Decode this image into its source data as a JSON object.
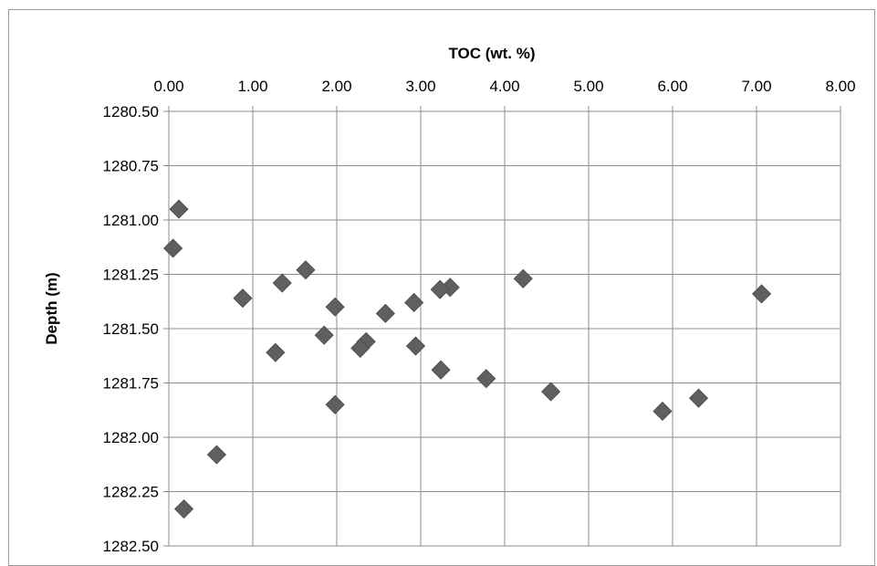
{
  "chart_data": {
    "type": "scatter",
    "title": "",
    "xlabel": "TOC (wt. %)",
    "ylabel": "Depth (m)",
    "xlim": [
      0,
      8
    ],
    "ylim": [
      1280.5,
      1282.5
    ],
    "y_inverted": true,
    "x_axis_position": "top",
    "grid": true,
    "legend": "none",
    "marker": "diamond",
    "marker_color": "#5f5f5f",
    "x_ticks": [
      "0.00",
      "1.00",
      "2.00",
      "3.00",
      "4.00",
      "5.00",
      "6.00",
      "7.00",
      "8.00"
    ],
    "y_ticks": [
      "1280.50",
      "1280.75",
      "1281.00",
      "1281.25",
      "1281.50",
      "1281.75",
      "1282.00",
      "1282.25",
      "1282.50"
    ],
    "points": [
      {
        "x": 0.12,
        "y": 1280.95
      },
      {
        "x": 0.05,
        "y": 1281.13
      },
      {
        "x": 1.63,
        "y": 1281.23
      },
      {
        "x": 4.22,
        "y": 1281.27
      },
      {
        "x": 1.35,
        "y": 1281.29
      },
      {
        "x": 3.35,
        "y": 1281.31
      },
      {
        "x": 3.23,
        "y": 1281.32
      },
      {
        "x": 7.06,
        "y": 1281.34
      },
      {
        "x": 0.88,
        "y": 1281.36
      },
      {
        "x": 2.92,
        "y": 1281.38
      },
      {
        "x": 1.98,
        "y": 1281.4
      },
      {
        "x": 2.58,
        "y": 1281.43
      },
      {
        "x": 1.85,
        "y": 1281.53
      },
      {
        "x": 2.35,
        "y": 1281.56
      },
      {
        "x": 2.28,
        "y": 1281.59
      },
      {
        "x": 2.94,
        "y": 1281.58
      },
      {
        "x": 1.27,
        "y": 1281.61
      },
      {
        "x": 3.24,
        "y": 1281.69
      },
      {
        "x": 3.78,
        "y": 1281.73
      },
      {
        "x": 4.55,
        "y": 1281.79
      },
      {
        "x": 6.31,
        "y": 1281.82
      },
      {
        "x": 1.98,
        "y": 1281.85
      },
      {
        "x": 5.88,
        "y": 1281.88
      },
      {
        "x": 0.57,
        "y": 1282.08
      },
      {
        "x": 0.18,
        "y": 1282.33
      }
    ]
  }
}
